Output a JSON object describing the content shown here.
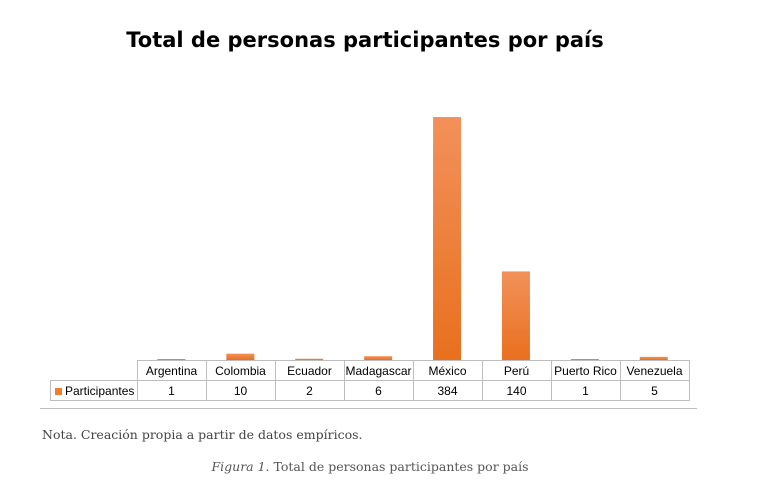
{
  "chart_data": {
    "type": "bar",
    "title": "Total de personas participantes por país",
    "categories": [
      "Argentina",
      "Colombia",
      "Ecuador",
      "Madagascar",
      "México",
      "Perú",
      "Puerto Rico",
      "Venezuela"
    ],
    "series": [
      {
        "name": "Participantes",
        "values": [
          1,
          10,
          2,
          6,
          384,
          140,
          1,
          5
        ]
      }
    ],
    "ylim": [
      0,
      384
    ],
    "grid": false,
    "legend": "data-table",
    "colors": {
      "bar_top": "#f2915a",
      "bar_bottom": "#e8701e"
    }
  },
  "note": "Nota. Creación propia a partir de datos empíricos.",
  "caption": {
    "label": "Figura 1.",
    "text": " Total de personas participantes por país"
  }
}
